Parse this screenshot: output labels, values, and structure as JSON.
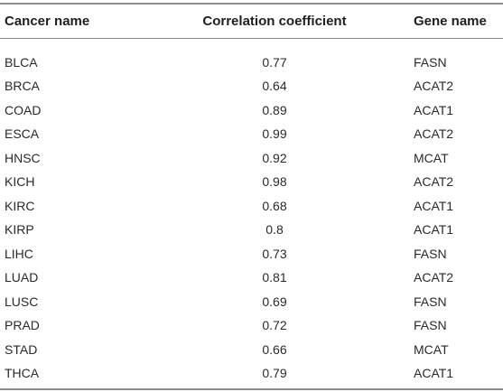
{
  "table": {
    "headers": [
      "Cancer name",
      "Correlation coefficient",
      "Gene name"
    ],
    "rows": [
      [
        "BLCA",
        "0.77",
        "FASN"
      ],
      [
        "BRCA",
        "0.64",
        "ACAT2"
      ],
      [
        "COAD",
        "0.89",
        "ACAT1"
      ],
      [
        "ESCA",
        "0.99",
        "ACAT2"
      ],
      [
        "HNSC",
        "0.92",
        "MCAT"
      ],
      [
        "KICH",
        "0.98",
        "ACAT2"
      ],
      [
        "KIRC",
        "0.68",
        "ACAT1"
      ],
      [
        "KIRP",
        "0.8",
        "ACAT1"
      ],
      [
        "LIHC",
        "0.73",
        "FASN"
      ],
      [
        "LUAD",
        "0.81",
        "ACAT2"
      ],
      [
        "LUSC",
        "0.69",
        "FASN"
      ],
      [
        "PRAD",
        "0.72",
        "FASN"
      ],
      [
        "STAD",
        "0.66",
        "MCAT"
      ],
      [
        "THCA",
        "0.79",
        "ACAT1"
      ]
    ]
  }
}
